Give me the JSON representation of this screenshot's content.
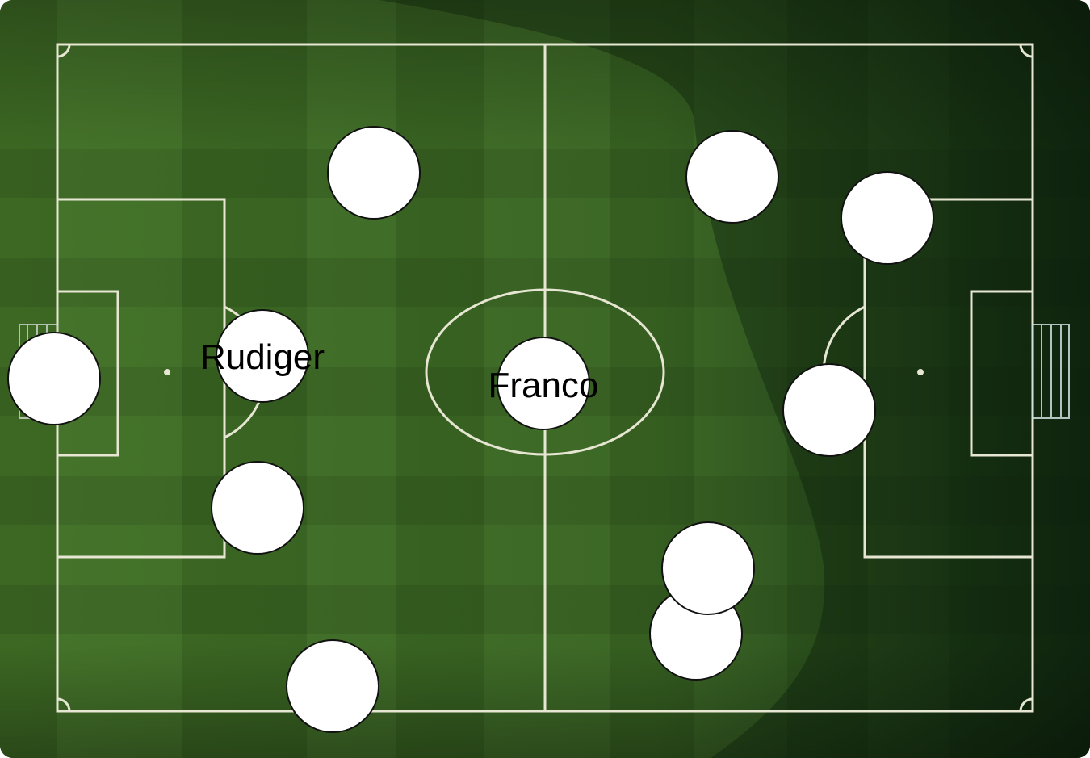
{
  "board": {
    "colors": {
      "grass_light": "#4f7f2c",
      "grass_dark": "#3d6a22",
      "shade": "#0c2310",
      "line": "#e6e6d2",
      "player_fill": "#ffffff",
      "player_border": "#111111"
    }
  },
  "players": [
    {
      "id": "gk-left",
      "label": ""
    },
    {
      "id": "top-left",
      "label": ""
    },
    {
      "id": "left-mid",
      "label": "Rudiger"
    },
    {
      "id": "left-low",
      "label": ""
    },
    {
      "id": "bottom-left",
      "label": ""
    },
    {
      "id": "center",
      "label": "Franco"
    },
    {
      "id": "top-right",
      "label": ""
    },
    {
      "id": "right-box-top",
      "label": ""
    },
    {
      "id": "right-mid",
      "label": ""
    },
    {
      "id": "bottom-right-upper",
      "label": ""
    },
    {
      "id": "bottom-right-lower",
      "label": ""
    }
  ]
}
